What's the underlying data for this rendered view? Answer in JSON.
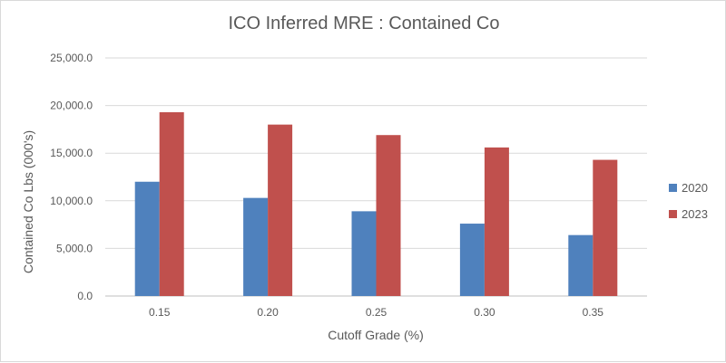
{
  "chart_data": {
    "type": "bar",
    "title": "ICO Inferred MRE : Contained Co",
    "xlabel": "Cutoff Grade (%)",
    "ylabel": "Contained Co Lbs (000's)",
    "categories": [
      "0.15",
      "0.20",
      "0.25",
      "0.30",
      "0.35"
    ],
    "series": [
      {
        "name": "2020",
        "color": "#4f81bd",
        "values": [
          12000,
          10300,
          8900,
          7600,
          6400
        ]
      },
      {
        "name": "2023",
        "color": "#c0504d",
        "values": [
          19300,
          18000,
          16900,
          15600,
          14300
        ]
      }
    ],
    "ylim": [
      0,
      25000
    ],
    "yticks": [
      "0.0",
      "5,000.0",
      "10,000.0",
      "15,000.0",
      "20,000.0",
      "25,000.0"
    ],
    "grid": true,
    "legend_position": "right"
  }
}
